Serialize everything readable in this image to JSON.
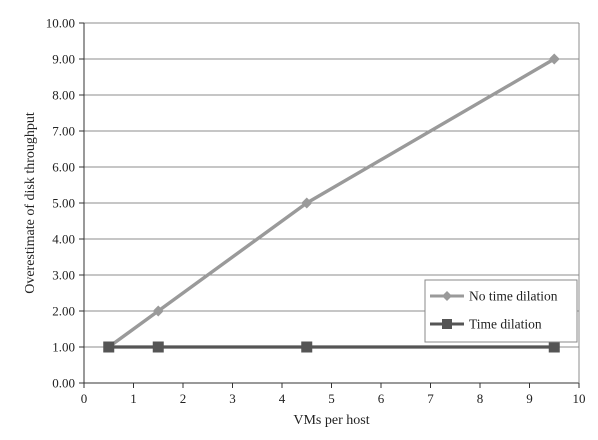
{
  "chart_data": {
    "type": "line",
    "xlabel": "VMs per host",
    "ylabel": "Overestimate of disk throughput",
    "xlim": [
      0,
      10
    ],
    "ylim": [
      0,
      10
    ],
    "x_ticks": [
      "0",
      "1",
      "2",
      "3",
      "4",
      "5",
      "6",
      "7",
      "8",
      "9",
      "10"
    ],
    "y_ticks": [
      "0.00",
      "1.00",
      "2.00",
      "3.00",
      "4.00",
      "5.00",
      "6.00",
      "7.00",
      "8.00",
      "9.00",
      "10.00"
    ],
    "grid": "horizontal",
    "legend_position": "bottom-right",
    "series": [
      {
        "name": "No time dilation",
        "marker": "diamond",
        "color": "#9a9a9a",
        "x": [
          0.5,
          1.5,
          4.5,
          9.5
        ],
        "y": [
          1.0,
          2.0,
          5.0,
          9.0
        ]
      },
      {
        "name": "Time dilation",
        "marker": "square",
        "color": "#555555",
        "x": [
          0.5,
          1.5,
          4.5,
          9.5
        ],
        "y": [
          1.0,
          1.0,
          1.0,
          1.0
        ]
      }
    ]
  }
}
